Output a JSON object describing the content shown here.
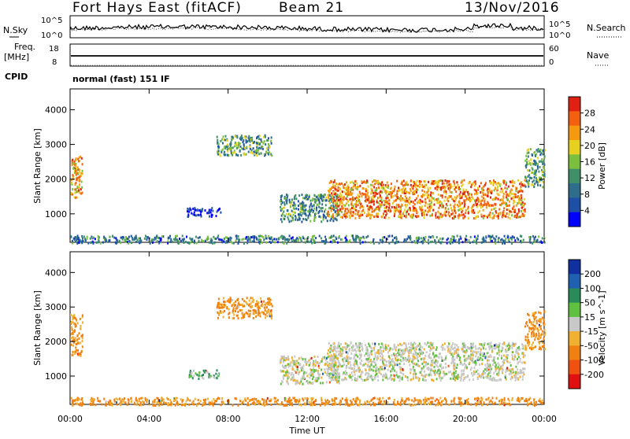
{
  "header": {
    "station": "Fort Hays East (fitACF)",
    "beam": "Beam 21",
    "date": "13/Nov/2016"
  },
  "noise_panel": {
    "left_label": "N.Sky",
    "right_label": "N.Search",
    "left_ticks": [
      "10^5",
      "10^0"
    ],
    "right_ticks": [
      "10^5",
      "10^0"
    ]
  },
  "freq_panel": {
    "left_label_line1": "Freq.",
    "left_label_line2": "[MHz]",
    "right_label": "Nave",
    "left_ticks": [
      "18",
      "8"
    ],
    "right_ticks": [
      "60",
      "0"
    ],
    "cpid_label": "CPID",
    "cpid_text": "normal (fast) 151 IF"
  },
  "chart_data": [
    {
      "type": "heatmap",
      "title": "",
      "quantity": "Power",
      "ylabel": "Slant Range [km]",
      "xlabel": "Time UT",
      "colorbar_label": "Power [dB]",
      "colorbar_ticks": [
        "4",
        "8",
        "12",
        "16",
        "20",
        "24",
        "28"
      ],
      "ylim": [
        180,
        4600
      ],
      "xlim": [
        0,
        24
      ],
      "y_ticks": [
        "1000",
        "2000",
        "3000",
        "4000"
      ],
      "x_ticks": [
        "00:00",
        "04:00",
        "08:00",
        "12:00",
        "16:00",
        "20:00",
        "00:00"
      ],
      "scatter_regions": [
        {
          "t0": 0.0,
          "t1": 0.6,
          "r0": 1500,
          "r1": 2700,
          "level": 0.7
        },
        {
          "t0": 5.9,
          "t1": 7.6,
          "r0": 950,
          "r1": 1200,
          "level": 0.1
        },
        {
          "t0": 7.4,
          "t1": 10.2,
          "r0": 2700,
          "r1": 3300,
          "level": 0.4
        },
        {
          "t0": 10.6,
          "t1": 13.6,
          "r0": 800,
          "r1": 1600,
          "level": 0.35
        },
        {
          "t0": 13.0,
          "t1": 23.0,
          "r0": 900,
          "r1": 2000,
          "level": 0.75
        },
        {
          "t0": 23.0,
          "t1": 24.0,
          "r0": 1800,
          "r1": 2900,
          "level": 0.4
        },
        {
          "t0": 0.0,
          "t1": 24.0,
          "r0": 180,
          "r1": 400,
          "level": 0.3
        }
      ]
    },
    {
      "type": "heatmap",
      "title": "",
      "quantity": "Velocity",
      "ylabel": "Slant Range [km]",
      "xlabel": "Time UT",
      "colorbar_label": "Velocity [m s^-1]",
      "colorbar_ticks": [
        "200",
        "100",
        "50",
        "15",
        "-15",
        "-50",
        "-100",
        "-200"
      ],
      "ylim": [
        180,
        4600
      ],
      "xlim": [
        0,
        24
      ],
      "y_ticks": [
        "1000",
        "2000",
        "3000",
        "4000"
      ],
      "x_ticks": [
        "00:00",
        "04:00",
        "08:00",
        "12:00",
        "16:00",
        "20:00",
        "00:00"
      ],
      "scatter_regions": [
        {
          "t0": 0.0,
          "t1": 0.6,
          "r0": 1600,
          "r1": 2800,
          "level": -40
        },
        {
          "t0": 5.9,
          "t1": 7.6,
          "r0": 950,
          "r1": 1200,
          "level": 30
        },
        {
          "t0": 7.4,
          "t1": 10.2,
          "r0": 2700,
          "r1": 3300,
          "level": -40
        },
        {
          "t0": 10.6,
          "t1": 13.6,
          "r0": 800,
          "r1": 1600,
          "level": 0
        },
        {
          "t0": 13.0,
          "t1": 23.0,
          "r0": 900,
          "r1": 2000,
          "level": 0
        },
        {
          "t0": 23.0,
          "t1": 24.0,
          "r0": 1800,
          "r1": 2900,
          "level": -40
        },
        {
          "t0": 0.0,
          "t1": 24.0,
          "r0": 180,
          "r1": 400,
          "level": -40
        }
      ]
    }
  ],
  "power_colors": [
    "#0000ff",
    "#1e4fa6",
    "#2e6e8c",
    "#3f8f6a",
    "#7abf3e",
    "#e8d020",
    "#f59a10",
    "#f26010",
    "#e02010"
  ],
  "velocity_colors": [
    "#1030a0",
    "#2060b0",
    "#2a8a5a",
    "#60c040",
    "#c8c8c8",
    "#f0b030",
    "#f08010",
    "#f05010",
    "#e01010"
  ]
}
